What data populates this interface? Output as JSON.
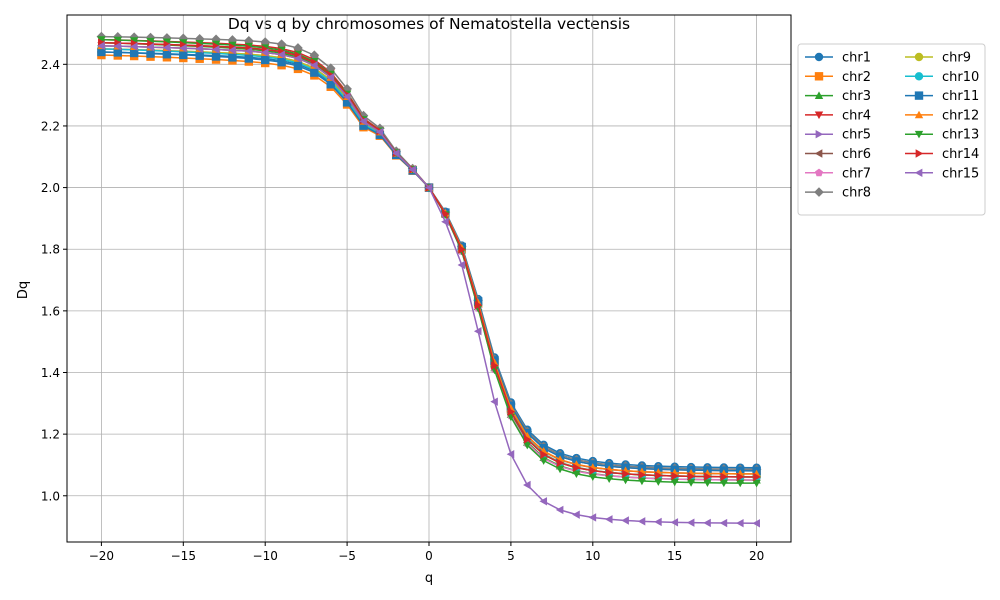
{
  "chart_data": {
    "type": "line",
    "title": "Dq vs q by chromosomes of Nematostella vectensis",
    "xlabel": "q",
    "ylabel": "Dq",
    "xlim": [
      -22.1,
      22.1
    ],
    "ylim": [
      0.85,
      2.56
    ],
    "xticks": [
      -20,
      -15,
      -10,
      -5,
      0,
      5,
      10,
      15,
      20
    ],
    "xtick_labels": [
      "−20",
      "−15",
      "−10",
      "−5",
      "0",
      "5",
      "10",
      "15",
      "20"
    ],
    "yticks": [
      1.0,
      1.2,
      1.4,
      1.6,
      1.8,
      2.0,
      2.2,
      2.4
    ],
    "ytick_labels": [
      "1.0",
      "1.2",
      "1.4",
      "1.6",
      "1.8",
      "2.0",
      "2.2",
      "2.4"
    ],
    "grid": true,
    "legend_position": "outside-top-right",
    "x": [
      -20,
      -19,
      -18,
      -17,
      -16,
      -15,
      -14,
      -13,
      -12,
      -11,
      -10,
      -9,
      -8,
      -7,
      -6,
      -5,
      -4,
      -3,
      -2,
      -1,
      0,
      1,
      2,
      3,
      4,
      5,
      6,
      7,
      8,
      9,
      10,
      11,
      12,
      13,
      14,
      15,
      16,
      17,
      18,
      19,
      20
    ],
    "series": [
      {
        "name": "chr1",
        "color": "#1f77b4",
        "marker": "o",
        "params": [
          2.44,
          2.4,
          1.09,
          1.48
        ]
      },
      {
        "name": "chr2",
        "color": "#ff7f0e",
        "marker": "s",
        "params": [
          2.43,
          2.38,
          1.07,
          1.44
        ]
      },
      {
        "name": "chr3",
        "color": "#2ca02c",
        "marker": "^",
        "params": [
          2.47,
          2.42,
          1.05,
          1.42
        ]
      },
      {
        "name": "chr4",
        "color": "#d62728",
        "marker": "v",
        "params": [
          2.48,
          2.44,
          1.06,
          1.43
        ]
      },
      {
        "name": "chr5",
        "color": "#9467bd",
        "marker": ">",
        "params": [
          2.46,
          2.42,
          1.07,
          1.44
        ]
      },
      {
        "name": "chr6",
        "color": "#8c564b",
        "marker": "<",
        "params": [
          2.47,
          2.43,
          1.08,
          1.46
        ]
      },
      {
        "name": "chr7",
        "color": "#e377c2",
        "marker": "p",
        "params": [
          2.45,
          2.41,
          1.05,
          1.4
        ]
      },
      {
        "name": "chr8",
        "color": "#7f7f7f",
        "marker": "D",
        "params": [
          2.49,
          2.46,
          1.085,
          1.47
        ]
      },
      {
        "name": "chr9",
        "color": "#bcbd22",
        "marker": "o",
        "params": [
          2.45,
          2.41,
          1.06,
          1.45
        ]
      },
      {
        "name": "chr10",
        "color": "#17becf",
        "marker": "o",
        "params": [
          2.45,
          2.4,
          1.06,
          1.44
        ]
      },
      {
        "name": "chr11",
        "color": "#1f77b4",
        "marker": "s",
        "params": [
          2.44,
          2.39,
          1.08,
          1.46
        ]
      },
      {
        "name": "chr12",
        "color": "#ff7f0e",
        "marker": "^",
        "params": [
          2.46,
          2.42,
          1.07,
          1.45
        ]
      },
      {
        "name": "chr13",
        "color": "#2ca02c",
        "marker": "v",
        "params": [
          2.48,
          2.43,
          1.04,
          1.41
        ]
      },
      {
        "name": "chr14",
        "color": "#d62728",
        "marker": ">",
        "params": [
          2.47,
          2.43,
          1.06,
          1.43
        ]
      },
      {
        "name": "chr15",
        "color": "#9467bd",
        "marker": "<",
        "params": [
          2.46,
          2.42,
          0.91,
          1.24
        ]
      }
    ]
  }
}
